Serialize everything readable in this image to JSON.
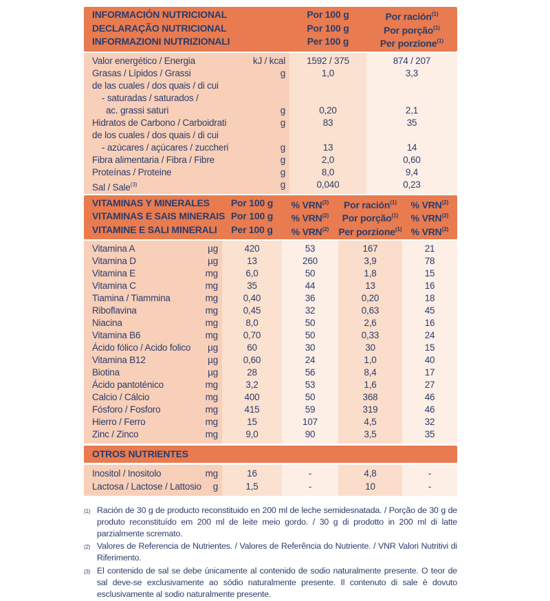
{
  "colors": {
    "orange": "#E87B50",
    "navy": "#2B3C6B",
    "salmon": "#F8CFB8",
    "band_peach": "#FBE1CF",
    "band_peach_2": "#FADDCB",
    "band_light": "#FDEFE6",
    "page": "#FFFFFF"
  },
  "header_main": {
    "rows": [
      {
        "title": "INFORMACIÓN NUTRICIONAL",
        "col1": "Por 100 g",
        "col2": "Por ración",
        "col2_sup": "(1)"
      },
      {
        "title": "DECLARAÇÃO NUTRICIONAL",
        "col1": "Por 100 g",
        "col2": "Por porção",
        "col2_sup": "(1)"
      },
      {
        "title": "INFORMAZIONI NUTRIZIONALI",
        "col1": "Per 100 g",
        "col2": "Per porzione",
        "col2_sup": "(1)"
      }
    ]
  },
  "nutrition_table": {
    "rows": [
      {
        "label": "Valor energético / Energia",
        "unit": "kJ / kcal",
        "per100": "1592 / 375",
        "portion": "874 / 207"
      },
      {
        "label": "Grasas / Lípidos / Grassi",
        "unit": "g",
        "per100": "1,0",
        "portion": "3,3"
      },
      {
        "label": "de las cuales / dos quais / di cui",
        "unit": "",
        "per100": "",
        "portion": ""
      },
      {
        "label": "- saturadas / saturados /",
        "indent": 1,
        "unit": "",
        "per100": "",
        "portion": ""
      },
      {
        "label": "ac. grassi saturi",
        "indent": 2,
        "unit": "g",
        "per100": "0,20",
        "portion": "2,1"
      },
      {
        "label": "Hidratos de Carbono / Carboidrati",
        "unit": "g",
        "per100": "83",
        "portion": "35"
      },
      {
        "label": "de los cuales / dos quais / di cui",
        "unit": "",
        "per100": "",
        "portion": ""
      },
      {
        "label": "- azúcares / açúcares / zuccheri",
        "indent": 1,
        "unit": "g",
        "per100": "13",
        "portion": "14"
      },
      {
        "label": "Fibra alimentaria / Fibra / Fibre",
        "unit": "g",
        "per100": "2,0",
        "portion": "0,60"
      },
      {
        "label": "Proteínas / Proteine",
        "unit": "g",
        "per100": "8,0",
        "portion": "9,4"
      },
      {
        "label": "Sal / Sale",
        "label_sup": "(3)",
        "unit": "g",
        "per100": "0,040",
        "portion": "0,23"
      }
    ]
  },
  "header_vitamins": {
    "rows": [
      {
        "title": "VITAMINAS Y MINERALES",
        "col1": "Por 100 g",
        "col2": "% VRN",
        "col2_sup": "(2)",
        "col3": "Por ración",
        "col3_sup": "(1)",
        "col4": "% VRN",
        "col4_sup": "(2)"
      },
      {
        "title": "VITAMINAS E SAIS MINERAIS",
        "col1": "Por 100 g",
        "col2": "% VRN",
        "col2_sup": "(2)",
        "col3": "Por porção",
        "col3_sup": "(1)",
        "col4": "% VRN",
        "col4_sup": "(2)"
      },
      {
        "title": "VITAMINE E SALI MINERALI",
        "col1": "Per 100 g",
        "col2": "% VRN",
        "col2_sup": "(2)",
        "col3": "Per porzione",
        "col3_sup": "(1)",
        "col4": "% VRN",
        "col4_sup": "(2)"
      }
    ]
  },
  "vitamins_table": {
    "rows": [
      {
        "label": "Vitamina A",
        "unit": "µg",
        "per100": "420",
        "vrn100": "53",
        "portion": "167",
        "vrnportion": "21"
      },
      {
        "label": "Vitamina D",
        "unit": "µg",
        "per100": "13",
        "vrn100": "260",
        "portion": "3,9",
        "vrnportion": "78"
      },
      {
        "label": "Vitamina E",
        "unit": "mg",
        "per100": "6,0",
        "vrn100": "50",
        "portion": "1,8",
        "vrnportion": "15"
      },
      {
        "label": "Vitamina C",
        "unit": "mg",
        "per100": "35",
        "vrn100": "44",
        "portion": "13",
        "vrnportion": "16"
      },
      {
        "label": "Tiamina / Tiammina",
        "unit": "mg",
        "per100": "0,40",
        "vrn100": "36",
        "portion": "0,20",
        "vrnportion": "18"
      },
      {
        "label": "Riboflavina",
        "unit": "mg",
        "per100": "0,45",
        "vrn100": "32",
        "portion": "0,63",
        "vrnportion": "45"
      },
      {
        "label": "Niacina",
        "unit": "mg",
        "per100": "8,0",
        "vrn100": "50",
        "portion": "2,6",
        "vrnportion": "16"
      },
      {
        "label": "Vitamina B6",
        "unit": "mg",
        "per100": "0,70",
        "vrn100": "50",
        "portion": "0,33",
        "vrnportion": "24"
      },
      {
        "label": "Ácido fólico / Acido folico",
        "unit": "µg",
        "per100": "60",
        "vrn100": "30",
        "portion": "30",
        "vrnportion": "15"
      },
      {
        "label": "Vitamina B12",
        "unit": "µg",
        "per100": "0,60",
        "vrn100": "24",
        "portion": "1,0",
        "vrnportion": "40"
      },
      {
        "label": "Biotina",
        "unit": "µg",
        "per100": "28",
        "vrn100": "56",
        "portion": "8,4",
        "vrnportion": "17"
      },
      {
        "label": "Ácido pantoténico",
        "unit": "mg",
        "per100": "3,2",
        "vrn100": "53",
        "portion": "1,6",
        "vrnportion": "27"
      },
      {
        "label": "Calcio / Cálcio",
        "unit": "mg",
        "per100": "400",
        "vrn100": "50",
        "portion": "368",
        "vrnportion": "46"
      },
      {
        "label": "Fósforo / Fosforo",
        "unit": "mg",
        "per100": "415",
        "vrn100": "59",
        "portion": "319",
        "vrnportion": "46"
      },
      {
        "label": "Hierro / Ferro",
        "unit": "mg",
        "per100": "15",
        "vrn100": "107",
        "portion": "4,5",
        "vrnportion": "32"
      },
      {
        "label": "Zinc / Zinco",
        "unit": "mg",
        "per100": "9,0",
        "vrn100": "90",
        "portion": "3,5",
        "vrnportion": "35"
      }
    ]
  },
  "other_header": {
    "title": "OTROS NUTRIENTES"
  },
  "other_table": {
    "rows": [
      {
        "label": "Inositol / Inositolo",
        "unit": "mg",
        "per100": "16",
        "vrn100": "-",
        "portion": "4,8",
        "vrnportion": "-"
      },
      {
        "label": "Lactosa / Lactose / Lattosio",
        "unit": "g",
        "per100": "1,5",
        "vrn100": "-",
        "portion": "10",
        "vrnportion": "-"
      }
    ]
  },
  "footnotes": [
    {
      "marker": "(1)",
      "text": "Ración de 30 g de producto reconstituido en 200 ml de leche semidesnatada. / Porção de 30 g de produto reconstituído em 200 ml de leite meio gordo. / 30 g di prodotto in 200 ml di latte parzialmente scremato."
    },
    {
      "marker": "(2)",
      "text": "Valores de Referencia de Nutrientes. / Valores de Referência do Nutriente. / VNR Valori Nutritivi di Riferimento."
    },
    {
      "marker": "(3)",
      "text": "El contenido de sal se debe únicamente al contenido de sodio naturalmente presente. O teor de sal deve-se exclusivamente ao sódio naturalmente presente. Il contenuto di sale è dovuto esclusivamente al sodio naturalmente presente."
    }
  ]
}
